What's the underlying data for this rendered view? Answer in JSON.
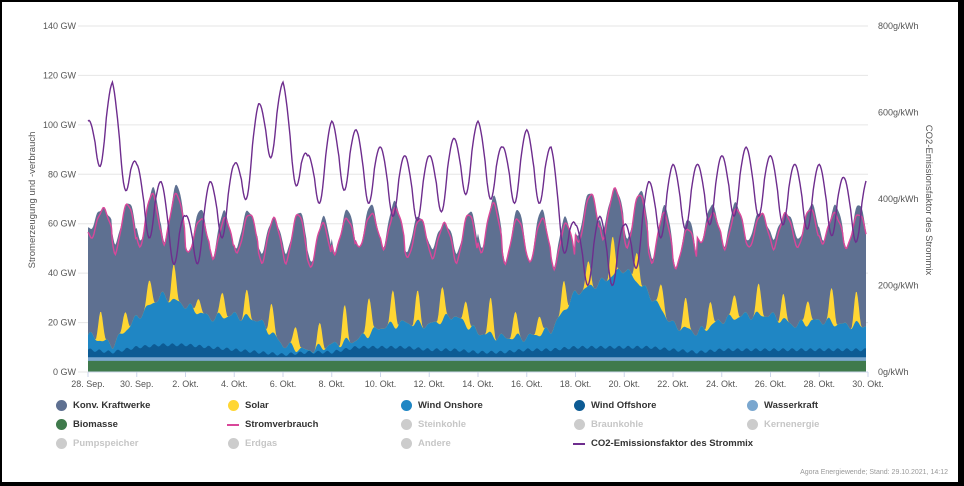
{
  "chart_data": {
    "type": "area",
    "stacking": "normal",
    "title": "",
    "ylabel": "Stromerzeugung und -verbrauch",
    "y2label": "CO2-Emissionsfaktor des Strommix",
    "ylim": [
      0,
      140
    ],
    "y2lim": [
      0,
      800
    ],
    "yticks": [
      "0 GW",
      "20 GW",
      "40 GW",
      "60 GW",
      "80 GW",
      "100 GW",
      "120 GW",
      "140 GW"
    ],
    "y2ticks": [
      "0g/kWh",
      "200g/kWh",
      "400g/kWh",
      "600g/kWh",
      "800g/kWh"
    ],
    "y2tick_values": [
      0,
      200,
      400,
      600,
      800
    ],
    "xticks": [
      "28. Sep.",
      "30. Sep.",
      "2. Okt.",
      "4. Okt.",
      "6. Okt.",
      "8. Okt.",
      "10. Okt.",
      "12. Okt.",
      "14. Okt.",
      "16. Okt.",
      "18. Okt.",
      "20. Okt.",
      "22. Okt.",
      "24. Okt.",
      "26. Okt.",
      "28. Okt.",
      "30. Okt."
    ],
    "x_range_days": [
      0,
      32
    ],
    "x_data_end_day": 31.9,
    "grid": true,
    "legend_position": "bottom",
    "colors": {
      "konv": "#5e7091",
      "solar": "#ffd633",
      "wind_onshore": "#1f86c4",
      "wind_offshore": "#0d5b94",
      "wasserkraft": "#7aa7cf",
      "biomasse": "#3f7a4c",
      "stromverbrauch": "#d9479a",
      "co2": "#6e2d8e",
      "hidden": "#cccccc"
    },
    "series_daily": {
      "day": [
        0,
        1,
        2,
        3,
        4,
        5,
        6,
        7,
        8,
        9,
        10,
        11,
        12,
        13,
        14,
        15,
        16,
        17,
        18,
        19,
        20,
        21,
        22,
        23,
        24,
        25,
        26,
        27,
        28,
        29,
        30,
        31
      ],
      "biomasse_gw": [
        4.5,
        4.5,
        4.5,
        4.5,
        4.5,
        4.5,
        4.5,
        4.5,
        4.5,
        4.5,
        4.5,
        4.5,
        4.5,
        4.5,
        4.5,
        4.5,
        4.5,
        4.5,
        4.5,
        4.5,
        4.5,
        4.5,
        4.5,
        4.5,
        4.5,
        4.5,
        4.5,
        4.5,
        4.5,
        4.5,
        4.5,
        4.5
      ],
      "wasserkraft_gw": [
        1.5,
        1.5,
        1.5,
        1.5,
        1.5,
        1.5,
        1.5,
        1.5,
        1.5,
        1.5,
        1.5,
        1.5,
        1.5,
        1.5,
        1.5,
        1.5,
        1.5,
        1.5,
        1.5,
        1.5,
        1.5,
        1.5,
        1.5,
        1.5,
        1.5,
        1.5,
        1.5,
        1.5,
        1.5,
        1.5,
        1.5,
        1.5
      ],
      "wind_offshore_gw": [
        3,
        2,
        4,
        5,
        5,
        4,
        3,
        2,
        1,
        2,
        2,
        4,
        4,
        4,
        3,
        3,
        2,
        2,
        3,
        3,
        4,
        4,
        4,
        4,
        3,
        2,
        3,
        3,
        3,
        3,
        3,
        3
      ],
      "wind_onshore_gw": [
        6,
        3,
        12,
        20,
        16,
        12,
        14,
        13,
        4,
        0.5,
        3,
        3,
        8,
        10,
        10,
        14,
        8,
        6,
        5,
        8,
        22,
        26,
        32,
        22,
        10,
        8,
        12,
        14,
        14,
        10,
        12,
        10
      ],
      "solar_peak_gw": [
        12,
        8,
        10,
        14,
        6,
        10,
        10,
        12,
        10,
        9,
        14,
        16,
        14,
        12,
        14,
        10,
        14,
        10,
        8,
        12,
        10,
        16,
        12,
        10,
        12,
        10,
        10,
        12,
        10,
        10,
        14,
        12
      ],
      "stromverbrauch_peak_gw": [
        66,
        68,
        72,
        72,
        62,
        62,
        64,
        62,
        64,
        60,
        62,
        64,
        66,
        62,
        60,
        64,
        68,
        62,
        62,
        60,
        72,
        74,
        72,
        64,
        58,
        64,
        66,
        64,
        64,
        66,
        64,
        64
      ],
      "stromverbrauch_low_gw": [
        54,
        48,
        50,
        52,
        48,
        46,
        48,
        44,
        44,
        42,
        48,
        50,
        50,
        46,
        46,
        44,
        48,
        44,
        44,
        42,
        52,
        54,
        50,
        44,
        42,
        52,
        50,
        50,
        50,
        50,
        52,
        50
      ],
      "co2_g_kwh": [
        520,
        610,
        420,
        380,
        300,
        380,
        420,
        560,
        610,
        440,
        520,
        500,
        460,
        440,
        440,
        480,
        520,
        460,
        500,
        460,
        280,
        300,
        280,
        380,
        420,
        420,
        440,
        460,
        440,
        420,
        420,
        390
      ]
    },
    "legend": [
      {
        "name": "Konv. Kraftwerke",
        "type": "area",
        "visible": true
      },
      {
        "name": "Solar",
        "type": "area",
        "visible": true
      },
      {
        "name": "Wind Onshore",
        "type": "area",
        "visible": true
      },
      {
        "name": "Wind Offshore",
        "type": "area",
        "visible": true
      },
      {
        "name": "Wasserkraft",
        "type": "area",
        "visible": true
      },
      {
        "name": "Biomasse",
        "type": "area",
        "visible": true
      },
      {
        "name": "Stromverbrauch",
        "type": "line",
        "visible": true
      },
      {
        "name": "Steinkohle",
        "type": "area",
        "visible": false
      },
      {
        "name": "Braunkohle",
        "type": "area",
        "visible": false
      },
      {
        "name": "Kernenergie",
        "type": "area",
        "visible": false
      },
      {
        "name": "Pumpspeicher",
        "type": "area",
        "visible": false
      },
      {
        "name": "Erdgas",
        "type": "area",
        "visible": false
      },
      {
        "name": "Andere",
        "type": "area",
        "visible": false
      },
      {
        "name": "CO2-Emissionsfaktor des Strommix",
        "type": "line",
        "visible": true
      }
    ]
  },
  "credit": "Agora Energiewende; Stand: 29.10.2021, 14:12"
}
